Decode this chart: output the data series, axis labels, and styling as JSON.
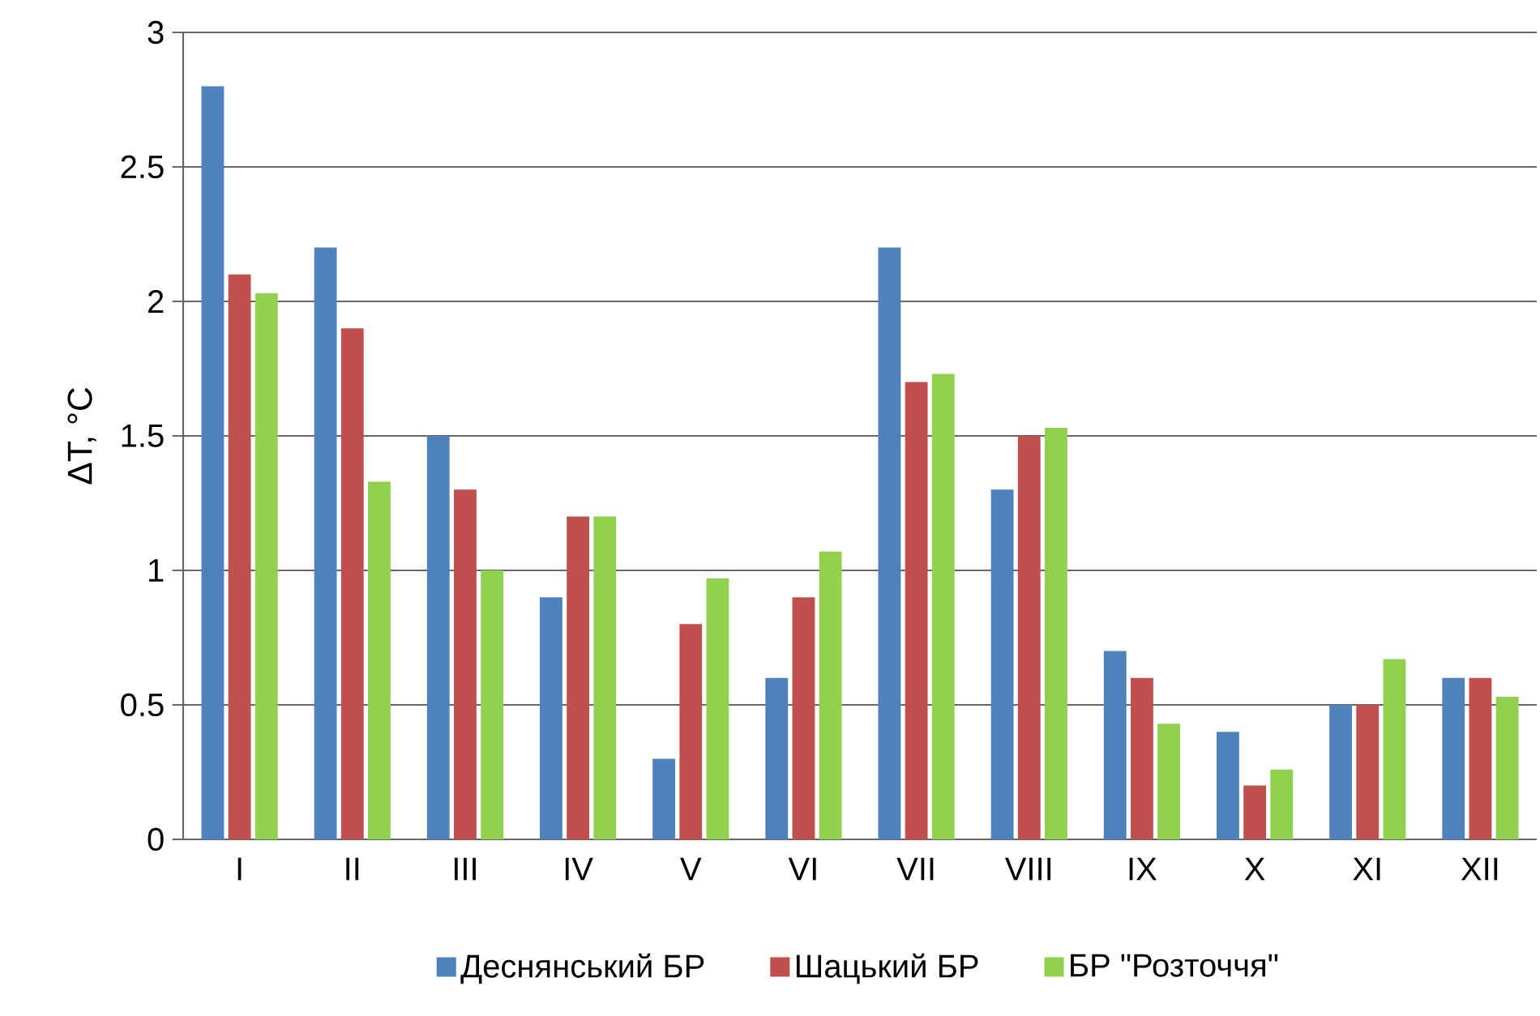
{
  "chart_data": {
    "type": "bar",
    "ylabel": "ΔT, °C",
    "categories": [
      "I",
      "II",
      "III",
      "IV",
      "V",
      "VI",
      "VII",
      "VIII",
      "IX",
      "X",
      "XI",
      "XII"
    ],
    "series": [
      {
        "name": "Деснянський БР",
        "color": "#4f81bd",
        "values": [
          2.8,
          2.2,
          1.5,
          0.9,
          0.3,
          0.6,
          2.2,
          1.3,
          0.7,
          0.4,
          0.5,
          0.6
        ]
      },
      {
        "name": "Шацький БР",
        "color": "#c0504d",
        "values": [
          2.1,
          1.9,
          1.3,
          1.2,
          0.8,
          0.9,
          1.7,
          1.5,
          0.6,
          0.2,
          0.5,
          0.6
        ]
      },
      {
        "name": "БР \"Розточчя\"",
        "color": "#92d050",
        "values": [
          2.03,
          1.33,
          1.0,
          1.2,
          0.97,
          1.07,
          1.73,
          1.53,
          0.43,
          0.26,
          0.67,
          0.53
        ]
      }
    ],
    "ylim": [
      0,
      3
    ],
    "yticks": [
      0,
      0.5,
      1,
      1.5,
      2,
      2.5,
      3
    ],
    "grid": "y",
    "legend": "bottom"
  }
}
